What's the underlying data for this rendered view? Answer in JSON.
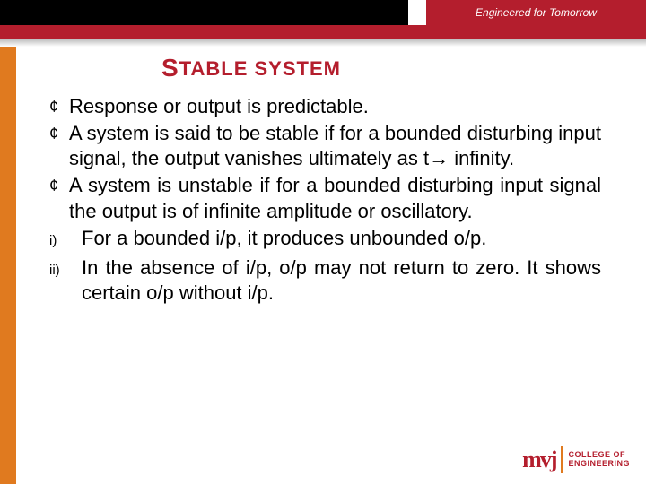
{
  "header": {
    "tagline": "Engineered for Tomorrow"
  },
  "title": {
    "first_letter": "S",
    "rest_word1": "TABLE",
    "rest_word2": " SYSTEM"
  },
  "bullets": [
    {
      "text": "Response or output is predictable."
    },
    {
      "text": "A system is said to be stable if for a bounded disturbing input signal, the output vanishes ultimately as t→ infinity."
    },
    {
      "text": "A system is unstable if for a bounded disturbing input signal the output is of infinite amplitude or oscillatory."
    }
  ],
  "roman": [
    {
      "mark": "i)",
      "text": "For a bounded i/p, it produces unbounded o/p."
    },
    {
      "mark": "ii)",
      "text": "In the absence of i/p, o/p may not return to zero. It shows certain o/p without i/p."
    }
  ],
  "logo": {
    "mark": "mvj",
    "line1": "COLLEGE OF",
    "line2": "ENGINEERING"
  },
  "colors": {
    "brand_red": "#b41e2d",
    "accent_orange": "#e07a1f",
    "black": "#000000",
    "white": "#ffffff"
  }
}
